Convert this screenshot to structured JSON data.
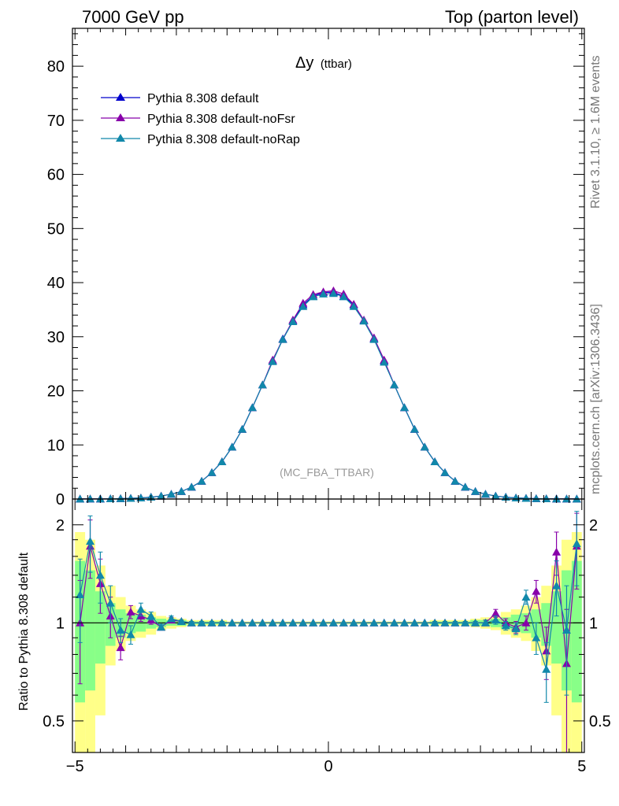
{
  "header": {
    "left": "7000 GeV pp",
    "right": "Top (parton level)"
  },
  "side_labels": {
    "rivet": "Rivet 3.1.10, ≥ 1.6M events",
    "mcplots": "mcplots.cern.ch [arXiv:1306.3436]"
  },
  "colors": {
    "default": "#0000cc",
    "noFsr": "#8800aa",
    "noRap": "#1188aa",
    "band_outer": "#ffff88",
    "band_inner": "#88ff88"
  },
  "chart_data": [
    {
      "type": "line",
      "title": "Δy",
      "subtitle": "(ttbar)",
      "annotation": "(MC_FBA_TTBAR)",
      "xlim": [
        -5.05,
        5.05
      ],
      "ylim": [
        0,
        87
      ],
      "yticks": [
        0,
        10,
        20,
        30,
        40,
        50,
        60,
        70,
        80
      ],
      "legend_position": "top-left",
      "x": [
        -4.9,
        -4.7,
        -4.5,
        -4.3,
        -4.1,
        -3.9,
        -3.7,
        -3.5,
        -3.3,
        -3.1,
        -2.9,
        -2.7,
        -2.5,
        -2.3,
        -2.1,
        -1.9,
        -1.7,
        -1.5,
        -1.3,
        -1.1,
        -0.9,
        -0.7,
        -0.5,
        -0.3,
        -0.1,
        0.1,
        0.3,
        0.5,
        0.7,
        0.9,
        1.1,
        1.3,
        1.5,
        1.7,
        1.9,
        2.1,
        2.3,
        2.5,
        2.7,
        2.9,
        3.1,
        3.3,
        3.5,
        3.7,
        3.9,
        4.1,
        4.3,
        4.5,
        4.7,
        4.9
      ],
      "series": [
        {
          "name": "Pythia 8.308 default",
          "color_key": "default",
          "values": [
            0.01,
            0.02,
            0.03,
            0.05,
            0.08,
            0.13,
            0.2,
            0.35,
            0.55,
            0.9,
            1.4,
            2.2,
            3.3,
            4.9,
            6.9,
            9.6,
            12.9,
            16.9,
            21.1,
            25.5,
            29.6,
            33.0,
            35.9,
            37.5,
            38.2,
            38.2,
            37.5,
            35.9,
            33.0,
            29.6,
            25.5,
            21.1,
            16.9,
            12.9,
            9.6,
            6.9,
            4.9,
            3.3,
            2.2,
            1.4,
            0.9,
            0.55,
            0.35,
            0.2,
            0.13,
            0.08,
            0.05,
            0.03,
            0.02,
            0.01
          ]
        },
        {
          "name": "Pythia 8.308 default-noFsr",
          "color_key": "noFsr",
          "values": [
            0.01,
            0.02,
            0.03,
            0.05,
            0.08,
            0.13,
            0.2,
            0.35,
            0.55,
            0.9,
            1.4,
            2.2,
            3.3,
            4.9,
            6.9,
            9.6,
            12.9,
            16.9,
            21.1,
            25.7,
            29.5,
            33.1,
            36.2,
            37.8,
            38.3,
            38.5,
            37.9,
            36.0,
            33.1,
            29.8,
            25.7,
            21.1,
            16.9,
            12.9,
            9.6,
            6.9,
            4.9,
            3.3,
            2.2,
            1.4,
            0.9,
            0.55,
            0.35,
            0.2,
            0.13,
            0.08,
            0.05,
            0.03,
            0.02,
            0.01
          ]
        },
        {
          "name": "Pythia 8.308 default-noRap",
          "color_key": "noRap",
          "values": [
            0.01,
            0.02,
            0.03,
            0.05,
            0.08,
            0.13,
            0.2,
            0.35,
            0.55,
            0.9,
            1.4,
            2.2,
            3.3,
            4.9,
            6.9,
            9.6,
            12.9,
            16.9,
            21.1,
            25.4,
            29.5,
            32.8,
            35.6,
            37.4,
            37.9,
            38.0,
            37.4,
            35.6,
            32.9,
            29.5,
            25.3,
            21.1,
            16.9,
            12.9,
            9.6,
            6.9,
            4.9,
            3.3,
            2.2,
            1.4,
            0.9,
            0.55,
            0.35,
            0.2,
            0.13,
            0.08,
            0.05,
            0.03,
            0.02,
            0.01
          ]
        }
      ]
    },
    {
      "type": "line",
      "ylabel": "Ratio to Pythia 8.308 default",
      "log_y": true,
      "xlim": [
        -5.05,
        5.05
      ],
      "ylim": [
        0.4,
        2.4
      ],
      "xticks": [
        -5,
        0,
        5
      ],
      "xtick_labels": [
        "−5",
        "0",
        "5"
      ],
      "yticks": [
        0.5,
        1,
        2
      ],
      "ytick_labels": [
        "0.5",
        "1",
        "2"
      ],
      "x": [
        -4.9,
        -4.7,
        -4.5,
        -4.3,
        -4.1,
        -3.9,
        -3.7,
        -3.5,
        -3.3,
        -3.1,
        -2.9,
        -2.7,
        -2.5,
        -2.3,
        -2.1,
        -1.9,
        -1.7,
        -1.5,
        -1.3,
        -1.1,
        -0.9,
        -0.7,
        -0.5,
        -0.3,
        -0.1,
        0.1,
        0.3,
        0.5,
        0.7,
        0.9,
        1.1,
        1.3,
        1.5,
        1.7,
        1.9,
        2.1,
        2.3,
        2.5,
        2.7,
        2.9,
        3.1,
        3.3,
        3.5,
        3.7,
        3.9,
        4.1,
        4.3,
        4.5,
        4.7,
        4.9
      ],
      "band": {
        "outer_lo": [
          0.35,
          0.35,
          0.52,
          0.74,
          0.82,
          0.88,
          0.9,
          0.92,
          0.95,
          0.96,
          0.97,
          0.98,
          0.98,
          0.98,
          0.98,
          0.99,
          0.99,
          0.99,
          0.99,
          0.99,
          0.99,
          0.99,
          0.99,
          0.99,
          0.99,
          0.99,
          0.99,
          0.99,
          0.99,
          0.99,
          0.99,
          0.99,
          0.99,
          0.99,
          0.99,
          0.98,
          0.98,
          0.98,
          0.98,
          0.97,
          0.96,
          0.95,
          0.92,
          0.9,
          0.88,
          0.82,
          0.74,
          0.52,
          0.35,
          0.35
        ],
        "outer_hi": [
          1.9,
          1.8,
          1.5,
          1.3,
          1.2,
          1.13,
          1.1,
          1.08,
          1.05,
          1.04,
          1.03,
          1.02,
          1.02,
          1.02,
          1.02,
          1.01,
          1.01,
          1.01,
          1.01,
          1.01,
          1.01,
          1.01,
          1.01,
          1.01,
          1.01,
          1.01,
          1.01,
          1.01,
          1.01,
          1.01,
          1.01,
          1.01,
          1.01,
          1.01,
          1.01,
          1.02,
          1.02,
          1.02,
          1.02,
          1.03,
          1.04,
          1.05,
          1.08,
          1.1,
          1.13,
          1.2,
          1.3,
          1.5,
          1.8,
          1.9
        ],
        "inner_lo": [
          0.57,
          0.62,
          0.75,
          0.85,
          0.9,
          0.93,
          0.94,
          0.96,
          0.97,
          0.98,
          0.98,
          0.99,
          0.99,
          0.99,
          0.99,
          0.995,
          0.995,
          0.995,
          0.995,
          0.995,
          0.995,
          0.995,
          0.995,
          0.995,
          0.995,
          0.995,
          0.995,
          0.995,
          0.995,
          0.995,
          0.995,
          0.995,
          0.995,
          0.995,
          0.995,
          0.99,
          0.99,
          0.99,
          0.99,
          0.98,
          0.98,
          0.97,
          0.96,
          0.94,
          0.93,
          0.9,
          0.85,
          0.75,
          0.62,
          0.57
        ],
        "inner_hi": [
          1.55,
          1.45,
          1.25,
          1.15,
          1.1,
          1.07,
          1.06,
          1.04,
          1.03,
          1.02,
          1.02,
          1.01,
          1.01,
          1.01,
          1.01,
          1.005,
          1.005,
          1.005,
          1.005,
          1.005,
          1.005,
          1.005,
          1.005,
          1.005,
          1.005,
          1.005,
          1.005,
          1.005,
          1.005,
          1.005,
          1.005,
          1.005,
          1.005,
          1.005,
          1.005,
          1.01,
          1.01,
          1.01,
          1.01,
          1.02,
          1.02,
          1.03,
          1.04,
          1.06,
          1.07,
          1.1,
          1.15,
          1.25,
          1.45,
          1.55
        ]
      },
      "series": [
        {
          "name": "Pythia 8.308 default-noFsr",
          "color_key": "noFsr",
          "values": [
            1.0,
            1.72,
            1.32,
            1.05,
            0.84,
            1.08,
            1.05,
            1.02,
            0.97,
            1.02,
            1.01,
            1.0,
            1.0,
            1.0,
            1.0,
            1.0,
            1.0,
            1.0,
            1.0,
            1.0,
            1.0,
            1.0,
            1.0,
            1.0,
            1.0,
            1.0,
            1.0,
            1.0,
            1.0,
            1.0,
            1.0,
            1.0,
            1.0,
            1.0,
            1.0,
            1.0,
            1.0,
            1.0,
            1.0,
            1.0,
            1.0,
            1.07,
            1.0,
            0.97,
            1.0,
            1.25,
            0.82,
            1.65,
            0.75,
            1.72
          ],
          "err": [
            0.35,
            0.35,
            0.25,
            0.15,
            0.07,
            0.05,
            0.04,
            0.03,
            0.02,
            0.02,
            0.01,
            0.01,
            0.01,
            0.01,
            0.01,
            0.005,
            0.005,
            0.005,
            0.005,
            0.005,
            0.005,
            0.005,
            0.005,
            0.005,
            0.005,
            0.005,
            0.005,
            0.005,
            0.005,
            0.005,
            0.005,
            0.005,
            0.005,
            0.005,
            0.005,
            0.01,
            0.01,
            0.01,
            0.01,
            0.01,
            0.02,
            0.03,
            0.03,
            0.04,
            0.05,
            0.1,
            0.15,
            0.25,
            0.35,
            0.45
          ]
        },
        {
          "name": "Pythia 8.308 default-noRap",
          "color_key": "noRap",
          "values": [
            1.22,
            1.78,
            1.4,
            1.15,
            0.95,
            0.92,
            1.1,
            1.05,
            0.97,
            1.03,
            1.01,
            1.0,
            1.0,
            1.0,
            1.0,
            1.0,
            1.0,
            1.0,
            1.0,
            1.0,
            1.0,
            1.0,
            1.0,
            1.0,
            1.0,
            1.0,
            1.0,
            1.0,
            1.0,
            1.0,
            1.0,
            1.0,
            1.0,
            1.0,
            1.0,
            1.0,
            1.0,
            1.0,
            1.0,
            1.0,
            1.0,
            1.02,
            0.98,
            0.96,
            1.2,
            0.9,
            0.72,
            1.3,
            0.95,
            1.75
          ],
          "err": [
            0.35,
            0.35,
            0.25,
            0.15,
            0.08,
            0.06,
            0.05,
            0.03,
            0.02,
            0.02,
            0.01,
            0.01,
            0.01,
            0.01,
            0.01,
            0.005,
            0.005,
            0.005,
            0.005,
            0.005,
            0.005,
            0.005,
            0.005,
            0.005,
            0.005,
            0.005,
            0.005,
            0.005,
            0.005,
            0.005,
            0.005,
            0.005,
            0.005,
            0.005,
            0.005,
            0.01,
            0.01,
            0.01,
            0.01,
            0.01,
            0.02,
            0.03,
            0.03,
            0.04,
            0.06,
            0.1,
            0.15,
            0.25,
            0.35,
            0.45
          ]
        }
      ]
    }
  ]
}
